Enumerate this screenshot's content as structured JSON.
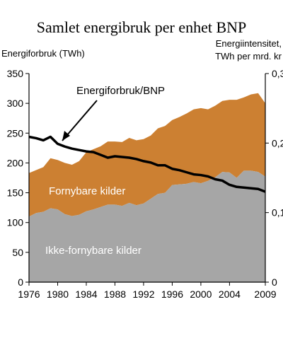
{
  "chart_data": {
    "type": "area",
    "title": "Samlet energibruk per enhet BNP",
    "ylabel_left": "Energiforbruk (TWh)",
    "ylabel_right_line1": "Energiintensitet,",
    "ylabel_right_line2": "TWh per mrd. kr",
    "x_ticks": [
      "1976",
      "1980",
      "1984",
      "1988",
      "1992",
      "1996",
      "2000",
      "2004",
      "2009"
    ],
    "y_left_ticks": [
      "350",
      "300",
      "250",
      "200",
      "150",
      "100",
      "50",
      "0"
    ],
    "y_right_ticks": [
      "0,3",
      "0,2",
      "0,1",
      "0"
    ],
    "xlim": [
      1976,
      2009
    ],
    "ylim_left": [
      0,
      350
    ],
    "ylim_right": [
      0,
      0.3
    ],
    "area_labels": {
      "renewable": "Fornybare kilder",
      "nonrenewable": "Ikke-fornybare kilder"
    },
    "annotation": "Energiforbruk/BNP",
    "colors": {
      "nonrenewable": "#a6a6a6",
      "renewable": "#cc8032",
      "line": "#000000"
    },
    "x": [
      1976,
      1977,
      1978,
      1979,
      1980,
      1981,
      1982,
      1983,
      1984,
      1985,
      1986,
      1987,
      1988,
      1989,
      1990,
      1991,
      1992,
      1993,
      1994,
      1995,
      1996,
      1997,
      1998,
      1999,
      2000,
      2001,
      2002,
      2003,
      2004,
      2005,
      2006,
      2007,
      2008,
      2009
    ],
    "series": [
      {
        "key": "nonrenewable",
        "axis": "left",
        "values": [
          110,
          116,
          118,
          124,
          122,
          114,
          111,
          113,
          119,
          122,
          126,
          130,
          130,
          128,
          133,
          129,
          132,
          140,
          148,
          150,
          163,
          164,
          165,
          168,
          166,
          170,
          176,
          185,
          184,
          175,
          187,
          187,
          185,
          177
        ]
      },
      {
        "key": "total",
        "axis": "left",
        "values": [
          183,
          188,
          193,
          208,
          205,
          200,
          197,
          203,
          218,
          223,
          228,
          236,
          236,
          235,
          242,
          238,
          240,
          246,
          258,
          262,
          272,
          277,
          283,
          290,
          292,
          290,
          296,
          304,
          306,
          306,
          310,
          315,
          317,
          300
        ]
      },
      {
        "key": "intensity",
        "axis": "right",
        "values": [
          0.209,
          0.207,
          0.204,
          0.209,
          0.199,
          0.195,
          0.192,
          0.19,
          0.188,
          0.187,
          0.183,
          0.179,
          0.181,
          0.18,
          0.179,
          0.177,
          0.174,
          0.172,
          0.168,
          0.168,
          0.163,
          0.161,
          0.158,
          0.155,
          0.154,
          0.152,
          0.148,
          0.146,
          0.14,
          0.137,
          0.136,
          0.135,
          0.134,
          0.13
        ]
      }
    ]
  }
}
